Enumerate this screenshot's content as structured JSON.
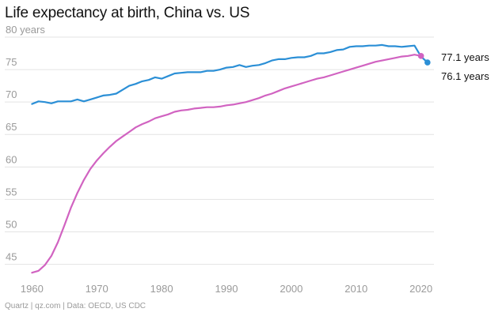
{
  "title": "Life expectancy at birth, China vs. US",
  "footer": "Quartz | qz.com | Data: OECD, US CDC",
  "chart_data": {
    "type": "line",
    "title": "Life expectancy at birth, China vs. US",
    "xlabel": "",
    "ylabel": "",
    "xlim": [
      1958,
      2022
    ],
    "ylim": [
      43,
      80
    ],
    "grid": true,
    "x_ticks": [
      1960,
      1970,
      1980,
      1990,
      2000,
      2010,
      2020
    ],
    "x_tick_labels": [
      "1960",
      "1970",
      "1980",
      "1990",
      "2000",
      "2010",
      "2020"
    ],
    "y_ticks": [
      45,
      50,
      55,
      60,
      65,
      70,
      75,
      80
    ],
    "y_tick_labels": [
      "45",
      "50",
      "55",
      "60",
      "65",
      "70",
      "75",
      "80 years"
    ],
    "series": [
      {
        "color": "#2b8fd6",
        "end_label": "76.1 years",
        "x": [
          1960,
          1961,
          1962,
          1963,
          1964,
          1965,
          1966,
          1967,
          1968,
          1969,
          1970,
          1971,
          1972,
          1973,
          1974,
          1975,
          1976,
          1977,
          1978,
          1979,
          1980,
          1981,
          1982,
          1983,
          1984,
          1985,
          1986,
          1987,
          1988,
          1989,
          1990,
          1991,
          1992,
          1993,
          1994,
          1995,
          1996,
          1997,
          1998,
          1999,
          2000,
          2001,
          2002,
          2003,
          2004,
          2005,
          2006,
          2007,
          2008,
          2009,
          2010,
          2011,
          2012,
          2013,
          2014,
          2015,
          2016,
          2017,
          2018,
          2019,
          2020,
          2021
        ],
        "values": [
          69.7,
          70.1,
          70.0,
          69.8,
          70.1,
          70.1,
          70.1,
          70.4,
          70.1,
          70.4,
          70.7,
          71.0,
          71.1,
          71.3,
          71.9,
          72.5,
          72.8,
          73.2,
          73.4,
          73.8,
          73.6,
          74.0,
          74.4,
          74.5,
          74.6,
          74.6,
          74.6,
          74.8,
          74.8,
          75.0,
          75.3,
          75.4,
          75.7,
          75.4,
          75.6,
          75.7,
          76.0,
          76.4,
          76.6,
          76.6,
          76.8,
          76.9,
          76.9,
          77.1,
          77.5,
          77.5,
          77.7,
          78.0,
          78.1,
          78.5,
          78.6,
          78.6,
          78.7,
          78.7,
          78.8,
          78.6,
          78.6,
          78.5,
          78.6,
          78.7,
          77.0,
          76.1
        ]
      },
      {
        "color": "#d163c1",
        "end_label": "77.1 years",
        "x": [
          1960,
          1961,
          1962,
          1963,
          1964,
          1965,
          1966,
          1967,
          1968,
          1969,
          1970,
          1971,
          1972,
          1973,
          1974,
          1975,
          1976,
          1977,
          1978,
          1979,
          1980,
          1981,
          1982,
          1983,
          1984,
          1985,
          1986,
          1987,
          1988,
          1989,
          1990,
          1991,
          1992,
          1993,
          1994,
          1995,
          1996,
          1997,
          1998,
          1999,
          2000,
          2001,
          2002,
          2003,
          2004,
          2005,
          2006,
          2007,
          2008,
          2009,
          2010,
          2011,
          2012,
          2013,
          2014,
          2015,
          2016,
          2017,
          2018,
          2019,
          2020
        ],
        "values": [
          43.7,
          44.0,
          44.9,
          46.3,
          48.4,
          51.0,
          53.7,
          56.0,
          58.0,
          59.7,
          61.0,
          62.1,
          63.1,
          64.0,
          64.7,
          65.4,
          66.1,
          66.6,
          67.0,
          67.5,
          67.8,
          68.1,
          68.5,
          68.7,
          68.8,
          69.0,
          69.1,
          69.2,
          69.2,
          69.3,
          69.5,
          69.6,
          69.8,
          70.0,
          70.3,
          70.6,
          71.0,
          71.3,
          71.7,
          72.1,
          72.4,
          72.7,
          73.0,
          73.3,
          73.6,
          73.8,
          74.1,
          74.4,
          74.7,
          75.0,
          75.3,
          75.6,
          75.9,
          76.2,
          76.4,
          76.6,
          76.8,
          77.0,
          77.1,
          77.3,
          77.1
        ]
      }
    ]
  }
}
